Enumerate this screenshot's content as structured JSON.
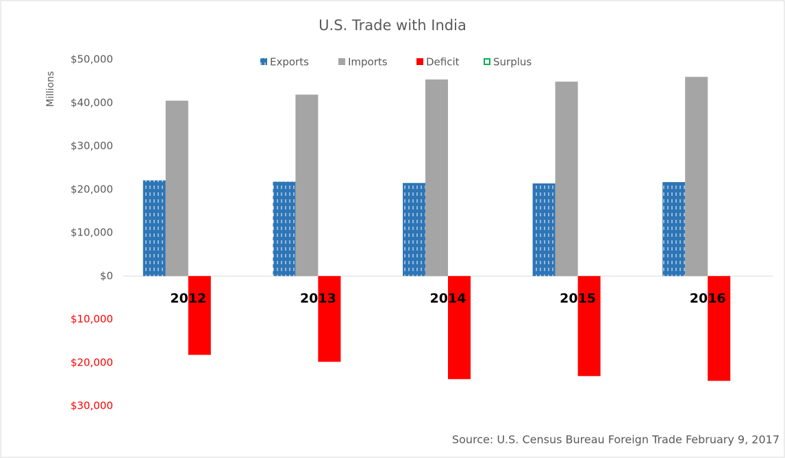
{
  "chart_data": {
    "type": "bar",
    "title": "U.S. Trade with India",
    "y_axis_label": "Millions",
    "source": "Source: U.S. Census Bureau Foreign Trade February 9, 2017",
    "categories": [
      "2012",
      "2013",
      "2014",
      "2015",
      "2016"
    ],
    "series": [
      {
        "name": "Exports",
        "color": "#2e75b6",
        "pattern": "dashed",
        "values": [
          22100,
          21800,
          21500,
          21400,
          21700
        ]
      },
      {
        "name": "Imports",
        "color": "#a5a5a5",
        "values": [
          40500,
          41900,
          45400,
          44900,
          46000
        ]
      },
      {
        "name": "Deficit",
        "color": "#ff0000",
        "values": [
          -18200,
          -19800,
          -23800,
          -23100,
          -24200
        ]
      },
      {
        "name": "Surplus",
        "color": "#00b050",
        "outline": true,
        "values": [
          null,
          null,
          null,
          null,
          null
        ]
      }
    ],
    "ylim": [
      -30000,
      50000
    ],
    "yticks": [
      {
        "value": -30000,
        "label": "$30,000"
      },
      {
        "value": -20000,
        "label": "$20,000"
      },
      {
        "value": -10000,
        "label": "$10,000"
      },
      {
        "value": 0,
        "label": "$0"
      },
      {
        "value": 10000,
        "label": "$10,000"
      },
      {
        "value": 20000,
        "label": "$20,000"
      },
      {
        "value": 30000,
        "label": "$30,000"
      },
      {
        "value": 40000,
        "label": "$40,000"
      },
      {
        "value": 50000,
        "label": "$50,000"
      }
    ],
    "negative_tick_color": "#ff0000",
    "grid": false,
    "legend": "top"
  }
}
